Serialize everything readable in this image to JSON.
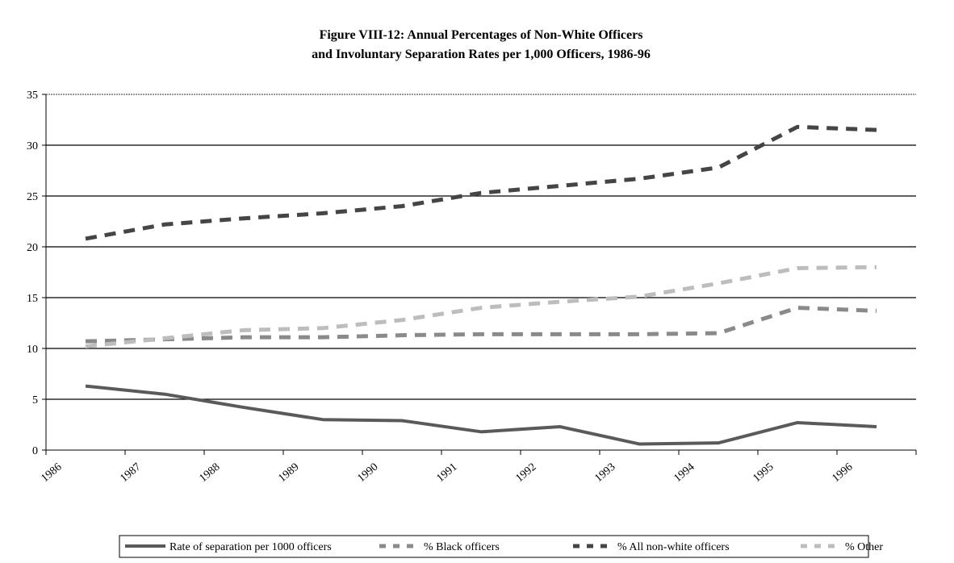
{
  "chart_data": {
    "type": "line",
    "title": [
      "Figure VIII-12:  Annual Percentages of Non-White Officers",
      "and Involuntary Separation Rates per 1,000 Officers, 1986-96"
    ],
    "categories": [
      "1986",
      "1987",
      "1988",
      "1989",
      "1990",
      "1991",
      "1992",
      "1993",
      "1994",
      "1995",
      "1996"
    ],
    "series": [
      {
        "name": "Rate of separation per 1000 officers",
        "color": "#5a5a5a",
        "dash": "solid",
        "values": [
          6.3,
          5.5,
          4.2,
          3.0,
          2.9,
          1.8,
          2.3,
          0.6,
          0.7,
          2.7,
          2.3
        ]
      },
      {
        "name": "% Black officers",
        "color": "#8a8a8a",
        "dash": "dashed",
        "values": [
          10.7,
          10.9,
          11.1,
          11.1,
          11.3,
          11.4,
          11.4,
          11.4,
          11.5,
          14.0,
          13.7
        ]
      },
      {
        "name": "% All non-white officers",
        "color": "#454545",
        "dash": "dashed",
        "values": [
          20.8,
          22.2,
          22.8,
          23.3,
          24.0,
          25.3,
          26.0,
          26.7,
          27.8,
          31.8,
          31.5
        ]
      },
      {
        "name": "% Other",
        "color": "#bdbdbd",
        "dash": "dashed",
        "values": [
          10.2,
          11.0,
          11.8,
          12.0,
          12.8,
          14.0,
          14.6,
          15.1,
          16.4,
          17.9,
          18.0
        ]
      }
    ],
    "ylim": [
      0,
      35
    ],
    "yticks": [
      0,
      5,
      10,
      15,
      20,
      25,
      30,
      35
    ],
    "grid": true,
    "legend": "bottom"
  }
}
